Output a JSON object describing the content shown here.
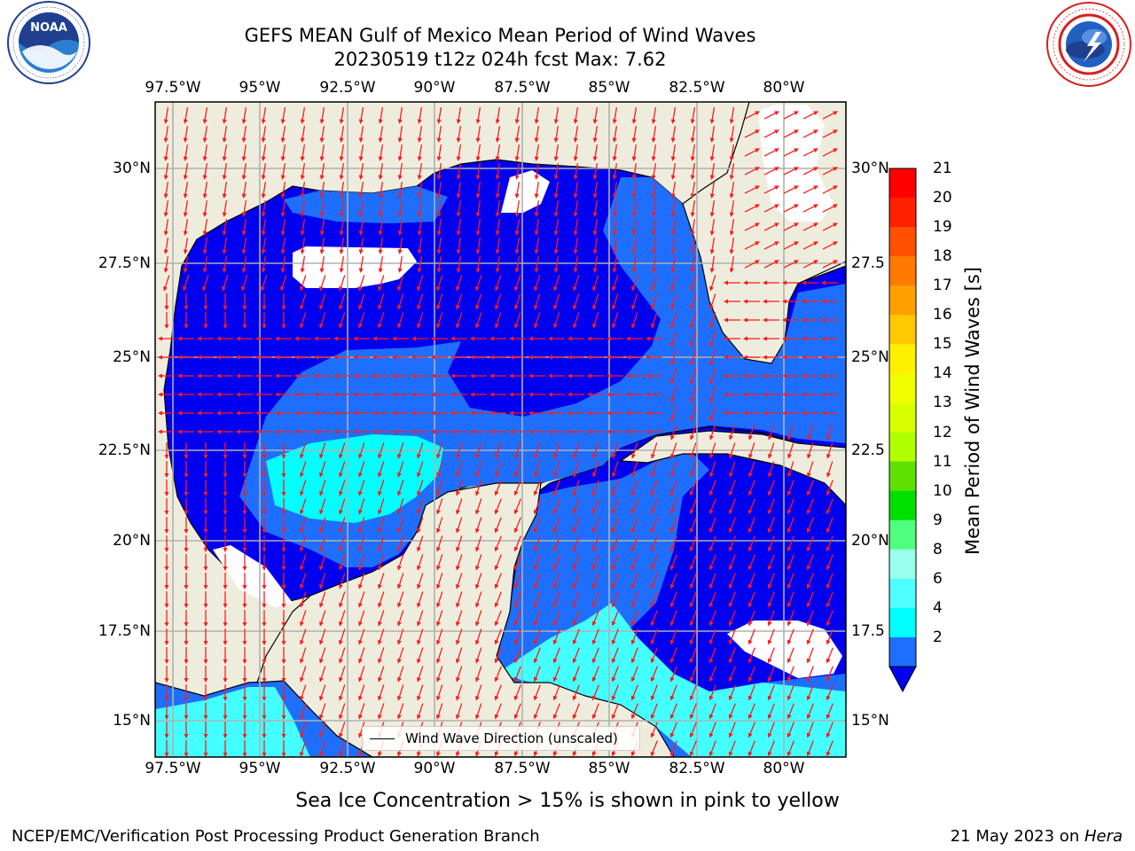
{
  "header": {
    "title_line1": "GEFS MEAN Gulf of Mexico Mean Period of Wind Waves",
    "title_line2": "20230519 t12z 024h fcst   Max: 7.62"
  },
  "logos": {
    "left": {
      "name": "NOAA",
      "ring_text": "NATIONAL OCEANIC AND ATMOSPHERIC ADMINISTRATION · U.S. DEPARTMENT OF COMMERCE",
      "colors": [
        "#1f3f8f",
        "#2b7fd1",
        "#ffffff"
      ]
    },
    "right": {
      "name": "NATIONAL WEATHER SERVICE",
      "colors": [
        "#d62020",
        "#1f4fa5",
        "#ffffff"
      ]
    }
  },
  "map": {
    "lon_ticks": [
      "97.5°W",
      "95°W",
      "92.5°W",
      "90°W",
      "87.5°W",
      "85°W",
      "82.5°W",
      "80°W"
    ],
    "lat_ticks_left": [
      "30°N",
      "27.5°N",
      "25°N",
      "22.5°N",
      "20°N",
      "17.5°N",
      "15°N"
    ],
    "lat_ticks_right": [
      "30°N",
      "27.5",
      "25°N",
      "22.5",
      "20°N",
      "17.5",
      "15°N"
    ],
    "land_color": "#eeeddd",
    "grid_color": "#b0b0b0",
    "arrow_color": "#ff1a1a",
    "wave_period_colors": {
      "2-4": "#1e6fff",
      "4-6": "#00ffff",
      "6-8": "#44ffff",
      "below-2": "#0000f0"
    },
    "legend_label": "Wind Wave Direction (unscaled)"
  },
  "colorbar": {
    "label": "Mean Period of Wind Waves [s]",
    "ticks": [
      "21",
      "20",
      "19",
      "18",
      "17",
      "16",
      "15",
      "14",
      "13",
      "12",
      "11",
      "10",
      "9",
      "8",
      "6",
      "4",
      "2"
    ],
    "bands": [
      "#ff0000",
      "#ff2000",
      "#ff5000",
      "#ff7a00",
      "#ffa000",
      "#ffc800",
      "#fff000",
      "#f0ff00",
      "#d8ff00",
      "#b0ff00",
      "#60e000",
      "#00e000",
      "#50ff80",
      "#9affee",
      "#50ffff",
      "#00ffff",
      "#1e6fff"
    ],
    "extend_color": "#0000f0"
  },
  "note": "Sea Ice Concentration > 15% is shown in pink to yellow",
  "footer": {
    "left": "NCEP/EMC/Verification Post Processing Product Generation Branch",
    "right_prefix": "21 May 2023 on ",
    "right_italic": "Hera"
  }
}
